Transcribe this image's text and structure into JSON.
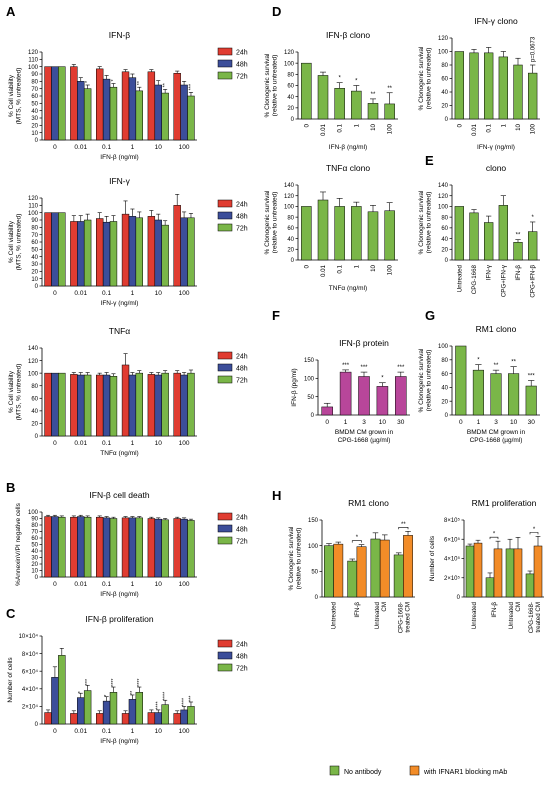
{
  "colors": {
    "red": "#e03c31",
    "blue": "#3c4e9a",
    "green": "#7ab648",
    "magenta": "#b8469a",
    "orange": "#f28c28",
    "axis": "#000000"
  },
  "legend_time": [
    "24h",
    "48h",
    "72h"
  ],
  "bottom_legend": [
    "No antibody",
    "with IFNAR1 blocking mAb"
  ],
  "chart_data": [
    {
      "id": "A1",
      "panel": "A",
      "type": "bar",
      "title": "IFN-β",
      "ylabel": "% Cell viability\n(MTS, % untreated)",
      "xlabel": "IFN-β (ng/ml)",
      "categories": [
        "0",
        "0.01",
        "0.1",
        "1",
        "10",
        "100"
      ],
      "ylim": [
        0,
        120
      ],
      "yticks": [
        0,
        10,
        20,
        30,
        40,
        50,
        60,
        70,
        80,
        90,
        100,
        110,
        120
      ],
      "series": [
        {
          "name": "24h",
          "color": "red",
          "values": [
            100,
            100,
            97,
            93,
            93,
            91
          ],
          "err": [
            0,
            3,
            3,
            3,
            3,
            3
          ]
        },
        {
          "name": "48h",
          "color": "blue",
          "values": [
            100,
            80,
            83,
            85,
            75,
            75
          ],
          "err": [
            0,
            5,
            5,
            5,
            6,
            5
          ]
        },
        {
          "name": "72h",
          "color": "green",
          "values": [
            100,
            70,
            72,
            67,
            64,
            60
          ],
          "err": [
            0,
            5,
            5,
            5,
            5,
            5
          ]
        }
      ],
      "sig": [
        "",
        "*",
        "*",
        "**",
        "**",
        "***"
      ]
    },
    {
      "id": "A2",
      "panel": "",
      "type": "bar",
      "title": "IFN-γ",
      "ylabel": "% Cell viability\n(MTS, % untreated)",
      "xlabel": "IFN-γ (ng/ml)",
      "categories": [
        "0",
        "0.01",
        "0.1",
        "1",
        "10",
        "100"
      ],
      "ylim": [
        0,
        120
      ],
      "yticks": [
        0,
        10,
        20,
        30,
        40,
        50,
        60,
        70,
        80,
        90,
        100,
        110,
        120
      ],
      "series": [
        {
          "name": "24h",
          "color": "red",
          "values": [
            100,
            88,
            92,
            98,
            95,
            110
          ],
          "err": [
            0,
            8,
            8,
            18,
            8,
            15
          ]
        },
        {
          "name": "48h",
          "color": "blue",
          "values": [
            100,
            88,
            87,
            95,
            90,
            93
          ],
          "err": [
            0,
            8,
            8,
            10,
            8,
            8
          ]
        },
        {
          "name": "72h",
          "color": "green",
          "values": [
            100,
            90,
            88,
            93,
            83,
            93
          ],
          "err": [
            0,
            8,
            8,
            8,
            6,
            6
          ]
        }
      ],
      "sig": [
        "",
        "",
        "",
        "",
        "",
        ""
      ]
    },
    {
      "id": "A3",
      "panel": "",
      "type": "bar",
      "title": "TNFα",
      "ylabel": "% Cell viability\n(MTS, % untreated)",
      "xlabel": "TNFα (ng/ml)",
      "categories": [
        "0",
        "0.01",
        "0.1",
        "1",
        "10",
        "100"
      ],
      "ylim": [
        0,
        140
      ],
      "yticks": [
        0,
        20,
        40,
        60,
        80,
        100,
        120,
        140
      ],
      "series": [
        {
          "name": "24h",
          "color": "red",
          "values": [
            100,
            98,
            97,
            113,
            98,
            100
          ],
          "err": [
            0,
            3,
            3,
            18,
            3,
            4
          ]
        },
        {
          "name": "48h",
          "color": "blue",
          "values": [
            100,
            97,
            97,
            97,
            97,
            97
          ],
          "err": [
            0,
            4,
            4,
            4,
            4,
            4
          ]
        },
        {
          "name": "72h",
          "color": "green",
          "values": [
            100,
            97,
            95,
            100,
            100,
            100
          ],
          "err": [
            0,
            4,
            4,
            4,
            4,
            5
          ]
        }
      ],
      "sig": [
        "",
        "",
        "",
        "",
        "",
        ""
      ]
    },
    {
      "id": "B",
      "panel": "B",
      "type": "bar",
      "title": "IFN-β cell death",
      "ylabel": "%AnnexinV/PI negative cells",
      "xlabel": "IFN-β (ng/ml)",
      "categories": [
        "0",
        "0.01",
        "0.1",
        "1",
        "10",
        "100"
      ],
      "ylim": [
        0,
        100
      ],
      "yticks": [
        0,
        10,
        20,
        30,
        40,
        50,
        60,
        70,
        80,
        90,
        100
      ],
      "series": [
        {
          "name": "24h",
          "color": "red",
          "values": [
            93,
            92,
            92,
            91,
            90,
            90
          ],
          "err": [
            2,
            2,
            2,
            2,
            2,
            2
          ]
        },
        {
          "name": "48h",
          "color": "blue",
          "values": [
            93,
            93,
            91,
            91,
            89,
            89
          ],
          "err": [
            2,
            2,
            2,
            2,
            2,
            2
          ]
        },
        {
          "name": "72h",
          "color": "green",
          "values": [
            92,
            92,
            90,
            91,
            88,
            87
          ],
          "err": [
            2,
            2,
            2,
            2,
            2,
            2
          ]
        }
      ],
      "sig": [
        "",
        "",
        "",
        "",
        "",
        ""
      ]
    },
    {
      "id": "C",
      "panel": "C",
      "type": "bar",
      "title": "IFN-β proliferation",
      "ylabel": "Number of cells",
      "xlabel": "IFN-β (ng/ml)",
      "categories": [
        "0",
        "0.01",
        "0.1",
        "1",
        "10",
        "100"
      ],
      "ylim": [
        0,
        10
      ],
      "yticks": [
        0,
        2,
        4,
        6,
        8,
        10
      ],
      "ytick_labels": [
        "0",
        "2×10⁴",
        "4×10⁴",
        "6×10⁴",
        "8×10⁴",
        "10×10⁴"
      ],
      "series": [
        {
          "name": "24h",
          "color": "red",
          "values": [
            1.3,
            1.2,
            1.2,
            1.2,
            1.3,
            1.2
          ],
          "err": [
            0.3,
            0.3,
            0.3,
            0.3,
            0.3,
            0.3
          ]
        },
        {
          "name": "48h",
          "color": "blue",
          "values": [
            5.3,
            3.0,
            2.6,
            2.8,
            1.3,
            1.6
          ],
          "err": [
            1.2,
            0.5,
            0.5,
            0.5,
            0.3,
            0.4
          ]
        },
        {
          "name": "72h",
          "color": "green",
          "values": [
            7.8,
            3.8,
            3.6,
            3.6,
            2.2,
            2.0
          ],
          "err": [
            0.8,
            0.6,
            0.6,
            0.6,
            0.5,
            0.5
          ]
        }
      ],
      "sig_series": [
        [
          "",
          "",
          "",
          "",
          "",
          ""
        ],
        [
          "",
          "*",
          "*",
          "**",
          "****",
          "****"
        ],
        [
          "",
          "***",
          "****",
          "****",
          "****",
          "***"
        ]
      ]
    },
    {
      "id": "D1",
      "panel": "D",
      "type": "bar",
      "title": "IFN-β clono",
      "ylabel": "% Clonogenic survival\n(relative to untreated)",
      "xlabel": "IFN-β (ng/ml)",
      "categories": [
        "0",
        "0.01",
        "0.1",
        "1",
        "10",
        "100"
      ],
      "ylim": [
        0,
        120
      ],
      "yticks": [
        0,
        20,
        40,
        60,
        80,
        100,
        120
      ],
      "color": "green",
      "values": [
        100,
        78,
        55,
        50,
        28,
        27
      ],
      "err": [
        0,
        6,
        10,
        10,
        8,
        20
      ],
      "sig": [
        "",
        "",
        "*",
        "*",
        "**",
        "**"
      ]
    },
    {
      "id": "D2",
      "panel": "",
      "type": "bar",
      "title": "IFN-γ clono",
      "ylabel": "% Clonogenic survival\n(relative to untreated)",
      "xlabel": "IFN-γ (ng/ml)",
      "categories": [
        "0",
        "0.01",
        "0.1",
        "1",
        "10",
        "100"
      ],
      "ylim": [
        0,
        120
      ],
      "yticks": [
        0,
        20,
        40,
        60,
        80,
        100,
        120
      ],
      "color": "green",
      "values": [
        100,
        98,
        98,
        92,
        80,
        68
      ],
      "err": [
        0,
        5,
        8,
        8,
        10,
        12
      ],
      "sig": [
        "",
        "",
        "",
        "",
        "",
        "p=0.0673"
      ]
    },
    {
      "id": "D3",
      "panel": "",
      "type": "bar",
      "title": "TNFα clono",
      "ylabel": "% Clonogenic survival\n(relative to untreated)",
      "xlabel": "TNFα (ng/ml)",
      "categories": [
        "0",
        "0.01",
        "0.1",
        "1",
        "10",
        "100"
      ],
      "ylim": [
        0,
        140
      ],
      "yticks": [
        0,
        20,
        40,
        60,
        80,
        100,
        120,
        140
      ],
      "color": "green",
      "values": [
        100,
        112,
        100,
        100,
        90,
        92
      ],
      "err": [
        0,
        15,
        15,
        8,
        12,
        15
      ],
      "sig": [
        "",
        "",
        "",
        "",
        "",
        ""
      ]
    },
    {
      "id": "E",
      "panel": "E",
      "type": "bar",
      "title": "clono",
      "ylabel": "% Clonogenic survival\n(relative to untreated)",
      "xlabel": "",
      "categories": [
        "Untreated",
        "CPG-1668",
        "IFN-γ",
        "CPG+IFN-γ",
        "IFN-β",
        "CPG+IFN-β"
      ],
      "ylim": [
        0,
        140
      ],
      "yticks": [
        0,
        20,
        40,
        60,
        80,
        100,
        120,
        140
      ],
      "color": "green",
      "values": [
        100,
        88,
        70,
        102,
        33,
        53
      ],
      "err": [
        0,
        6,
        12,
        18,
        5,
        18
      ],
      "sig": [
        "",
        "",
        "",
        "",
        "**",
        "*"
      ]
    },
    {
      "id": "F",
      "panel": "F",
      "type": "bar",
      "title": "IFN-β protein",
      "ylabel": "IFN-β (pg/ml)",
      "xlabel": "BMDM CM grown in\nCPG-1668 (µg/ml)",
      "categories": [
        "0",
        "1",
        "3",
        "10",
        "30"
      ],
      "ylim": [
        0,
        150
      ],
      "yticks": [
        0,
        50,
        100,
        150
      ],
      "color": "magenta",
      "values": [
        22,
        117,
        105,
        78,
        105
      ],
      "err": [
        10,
        6,
        12,
        10,
        12
      ],
      "sig": [
        "",
        "***",
        "***",
        "*",
        "***"
      ]
    },
    {
      "id": "G",
      "panel": "G",
      "type": "bar",
      "title": "RM1 clono",
      "ylabel": "% Clonogenic survival\n(relative to untreated)",
      "xlabel": "BMDM CM grown in\nCPG-1668 (µg/ml)",
      "categories": [
        "0",
        "1",
        "3",
        "10",
        "30"
      ],
      "ylim": [
        0,
        100
      ],
      "yticks": [
        0,
        20,
        40,
        60,
        80,
        100
      ],
      "color": "green",
      "values": [
        100,
        65,
        60,
        60,
        42
      ],
      "err": [
        0,
        8,
        5,
        10,
        8
      ],
      "sig": [
        "",
        "*",
        "**",
        "**",
        "***"
      ]
    },
    {
      "id": "H1",
      "panel": "H",
      "type": "bar",
      "title": "RM1 clono",
      "ylabel": "% Clonogenic survival\n(relative to untreated)",
      "xlabel": "",
      "categories": [
        "Untreated",
        "IFN-β",
        "Untreated\nCM",
        "CPG-1668-\ntreated CM"
      ],
      "ylim": [
        0,
        150
      ],
      "yticks": [
        0,
        50,
        100,
        150
      ],
      "series": [
        {
          "name": "No antibody",
          "color": "green",
          "values": [
            100,
            70,
            113,
            82
          ],
          "err": [
            4,
            4,
            12,
            4
          ]
        },
        {
          "name": "with IFNAR1 blocking mAb",
          "color": "orange",
          "values": [
            103,
            98,
            111,
            120
          ],
          "err": [
            4,
            4,
            10,
            8
          ]
        }
      ],
      "brackets": [
        {
          "group": 1,
          "label": "*"
        },
        {
          "group": 3,
          "label": "**"
        }
      ]
    },
    {
      "id": "H2",
      "panel": "",
      "type": "bar",
      "title": "RM1 proliferation",
      "ylabel": "Number of cells",
      "xlabel": "",
      "categories": [
        "Untreated",
        "IFN-β",
        "Untreated\nCM",
        "CPG-1668-\ntreated CM"
      ],
      "ylim": [
        0,
        8
      ],
      "yticks": [
        0,
        2,
        4,
        6,
        8
      ],
      "ytick_labels": [
        "0",
        "2×10⁵",
        "4×10⁵",
        "6×10⁵",
        "8×10⁵"
      ],
      "series": [
        {
          "name": "No antibody",
          "color": "green",
          "values": [
            5.3,
            2.0,
            5.0,
            2.4
          ],
          "err": [
            0.2,
            0.5,
            1.0,
            0.3
          ]
        },
        {
          "name": "with IFNAR1 blocking mAb",
          "color": "orange",
          "values": [
            5.6,
            5.0,
            5.0,
            5.3
          ],
          "err": [
            0.3,
            0.8,
            1.2,
            1.0
          ]
        }
      ],
      "brackets": [
        {
          "group": 1,
          "label": "*"
        },
        {
          "group": 3,
          "label": "*"
        }
      ]
    }
  ]
}
